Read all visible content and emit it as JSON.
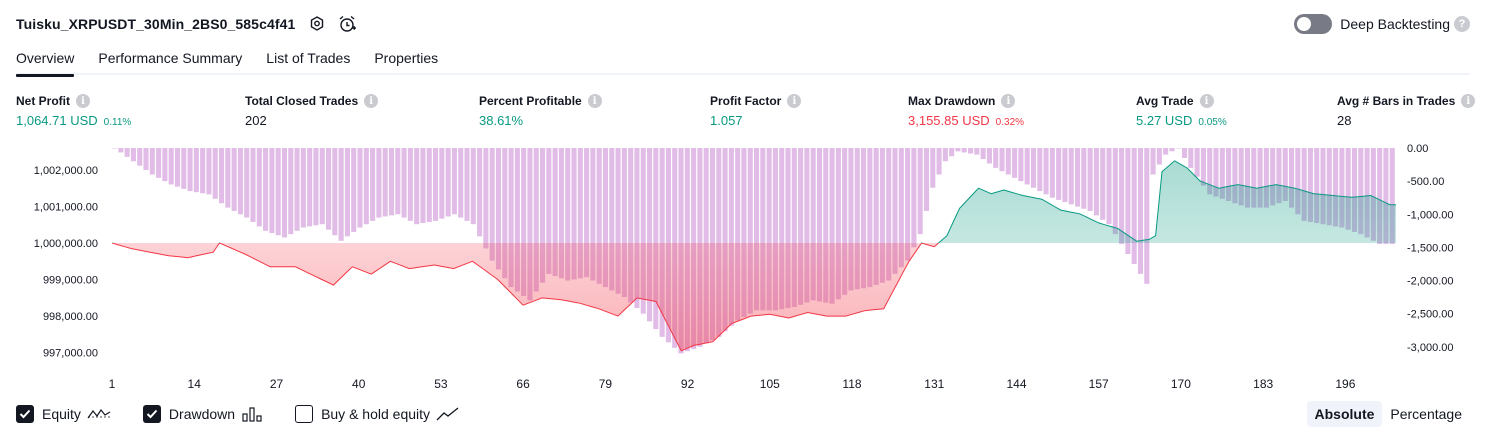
{
  "header": {
    "title": "Tuisku_XRPUSDT_30Min_2BS0_585c4f41",
    "icons": [
      "settings-icon",
      "alarm-add-icon"
    ]
  },
  "deep_backtesting": {
    "label": "Deep Backtesting",
    "enabled": false,
    "help": "?"
  },
  "tabs": [
    {
      "label": "Overview",
      "active": true
    },
    {
      "label": "Performance Summary",
      "active": false
    },
    {
      "label": "List of Trades",
      "active": false
    },
    {
      "label": "Properties",
      "active": false
    }
  ],
  "stats": [
    {
      "label": "Net Profit",
      "value": "1,064.71 USD",
      "pct": "0.11%",
      "color": "green"
    },
    {
      "label": "Total Closed Trades",
      "value": "202",
      "pct": "",
      "color": "neutral"
    },
    {
      "label": "Percent Profitable",
      "value": "38.61%",
      "pct": "",
      "color": "green"
    },
    {
      "label": "Profit Factor",
      "value": "1.057",
      "pct": "",
      "color": "green"
    },
    {
      "label": "Max Drawdown",
      "value": "3,155.85 USD",
      "pct": "0.32%",
      "color": "red"
    },
    {
      "label": "Avg Trade",
      "value": "5.27 USD",
      "pct": "0.05%",
      "color": "green"
    },
    {
      "label": "Avg # Bars in Trades",
      "value": "28",
      "pct": "",
      "color": "neutral"
    }
  ],
  "chart_data": {
    "type": "line",
    "left_axis": {
      "ticks": [
        "1,002,000.00",
        "1,001,000.00",
        "1,000,000.00",
        "999,000.00",
        "998,000.00",
        "997,000.00"
      ],
      "range": [
        996800,
        1002600
      ]
    },
    "right_axis": {
      "ticks": [
        "0.00",
        "-500.00",
        "-1,000.00",
        "-1,500.00",
        "-2,000.00",
        "-2,500.00",
        "-3,000.00"
      ],
      "range": [
        -3200,
        0
      ]
    },
    "x_ticks": [
      "1",
      "14",
      "27",
      "40",
      "53",
      "66",
      "79",
      "92",
      "105",
      "118",
      "131",
      "144",
      "157",
      "170",
      "183",
      "196"
    ],
    "x_range": [
      1,
      204
    ],
    "baseline": 1000000,
    "colors": {
      "profit": "#089981",
      "loss": "#f23645",
      "drawdown": "#ce93d8",
      "drawdown_overlay": "#9fa8da"
    },
    "equity_keypoints": [
      [
        1,
        1000000
      ],
      [
        4,
        999850
      ],
      [
        7,
        999750
      ],
      [
        10,
        999650
      ],
      [
        13,
        999600
      ],
      [
        17,
        999750
      ],
      [
        18,
        1000000
      ],
      [
        22,
        999700
      ],
      [
        26,
        999350
      ],
      [
        30,
        999350
      ],
      [
        33,
        999100
      ],
      [
        36,
        998850
      ],
      [
        39,
        999350
      ],
      [
        42,
        999150
      ],
      [
        45,
        999500
      ],
      [
        48,
        999300
      ],
      [
        52,
        999400
      ],
      [
        55,
        999300
      ],
      [
        58,
        999500
      ],
      [
        62,
        999000
      ],
      [
        66,
        998300
      ],
      [
        69,
        998500
      ],
      [
        72,
        998450
      ],
      [
        75,
        998350
      ],
      [
        78,
        998200
      ],
      [
        81,
        998000
      ],
      [
        84,
        998500
      ],
      [
        87,
        998400
      ],
      [
        91,
        997050
      ],
      [
        93,
        997200
      ],
      [
        96,
        997300
      ],
      [
        99,
        997800
      ],
      [
        102,
        998000
      ],
      [
        105,
        998050
      ],
      [
        108,
        997950
      ],
      [
        111,
        998100
      ],
      [
        114,
        998000
      ],
      [
        117,
        998000
      ],
      [
        120,
        998150
      ],
      [
        123,
        998200
      ],
      [
        127,
        999500
      ],
      [
        129,
        1000000
      ],
      [
        131,
        999900
      ],
      [
        133,
        1000200
      ],
      [
        135,
        1000950
      ],
      [
        138,
        1001500
      ],
      [
        140,
        1001350
      ],
      [
        142,
        1001450
      ],
      [
        145,
        1001300
      ],
      [
        148,
        1001200
      ],
      [
        151,
        1000900
      ],
      [
        154,
        1000800
      ],
      [
        157,
        1000550
      ],
      [
        160,
        1000400
      ],
      [
        163,
        1000050
      ],
      [
        165,
        1000100
      ],
      [
        166,
        1000200
      ],
      [
        167,
        1001950
      ],
      [
        169,
        1002250
      ],
      [
        171,
        1002050
      ],
      [
        173,
        1001700
      ],
      [
        176,
        1001500
      ],
      [
        179,
        1001600
      ],
      [
        182,
        1001500
      ],
      [
        185,
        1001600
      ],
      [
        188,
        1001500
      ],
      [
        191,
        1001350
      ],
      [
        194,
        1001300
      ],
      [
        197,
        1001250
      ],
      [
        200,
        1001300
      ],
      [
        203,
        1001050
      ]
    ],
    "drawdown_keypoints": [
      [
        1,
        0
      ],
      [
        4,
        -200
      ],
      [
        7,
        -400
      ],
      [
        10,
        -550
      ],
      [
        13,
        -650
      ],
      [
        16,
        -700
      ],
      [
        19,
        -900
      ],
      [
        22,
        -1050
      ],
      [
        25,
        -1250
      ],
      [
        28,
        -1350
      ],
      [
        31,
        -1200
      ],
      [
        34,
        -1150
      ],
      [
        37,
        -1400
      ],
      [
        40,
        -1200
      ],
      [
        43,
        -1050
      ],
      [
        46,
        -1000
      ],
      [
        49,
        -1150
      ],
      [
        52,
        -1100
      ],
      [
        55,
        -1000
      ],
      [
        58,
        -1150
      ],
      [
        61,
        -1700
      ],
      [
        64,
        -2100
      ],
      [
        67,
        -2300
      ],
      [
        70,
        -1900
      ],
      [
        73,
        -2000
      ],
      [
        76,
        -1950
      ],
      [
        79,
        -2100
      ],
      [
        82,
        -2250
      ],
      [
        85,
        -2500
      ],
      [
        88,
        -2850
      ],
      [
        91,
        -3100
      ],
      [
        94,
        -3000
      ],
      [
        97,
        -2850
      ],
      [
        100,
        -2600
      ],
      [
        103,
        -2450
      ],
      [
        106,
        -2450
      ],
      [
        109,
        -2400
      ],
      [
        112,
        -2300
      ],
      [
        115,
        -2350
      ],
      [
        118,
        -2150
      ],
      [
        121,
        -2100
      ],
      [
        124,
        -2000
      ],
      [
        127,
        -1700
      ],
      [
        129,
        -1300
      ],
      [
        131,
        -600
      ],
      [
        133,
        -200
      ],
      [
        135,
        -50
      ],
      [
        138,
        -100
      ],
      [
        141,
        -300
      ],
      [
        144,
        -450
      ],
      [
        147,
        -600
      ],
      [
        150,
        -750
      ],
      [
        153,
        -850
      ],
      [
        156,
        -950
      ],
      [
        159,
        -1150
      ],
      [
        162,
        -1600
      ],
      [
        164,
        -1900
      ],
      [
        165,
        -2050
      ],
      [
        166,
        -400
      ],
      [
        168,
        -100
      ],
      [
        170,
        0
      ],
      [
        172,
        -300
      ],
      [
        175,
        -700
      ],
      [
        178,
        -800
      ],
      [
        181,
        -900
      ],
      [
        184,
        -900
      ],
      [
        187,
        -800
      ],
      [
        190,
        -1100
      ],
      [
        193,
        -1150
      ],
      [
        196,
        -1200
      ],
      [
        199,
        -1300
      ],
      [
        202,
        -1450
      ],
      [
        204,
        -1450
      ]
    ]
  },
  "legend": [
    {
      "label": "Equity",
      "checked": true,
      "icon": "equity-line-icon"
    },
    {
      "label": "Drawdown",
      "checked": true,
      "icon": "drawdown-bars-icon"
    },
    {
      "label": "Buy & hold equity",
      "checked": false,
      "icon": "buyhold-line-icon"
    }
  ],
  "mode": {
    "absolute": "Absolute",
    "percentage": "Percentage",
    "selected": "absolute"
  }
}
